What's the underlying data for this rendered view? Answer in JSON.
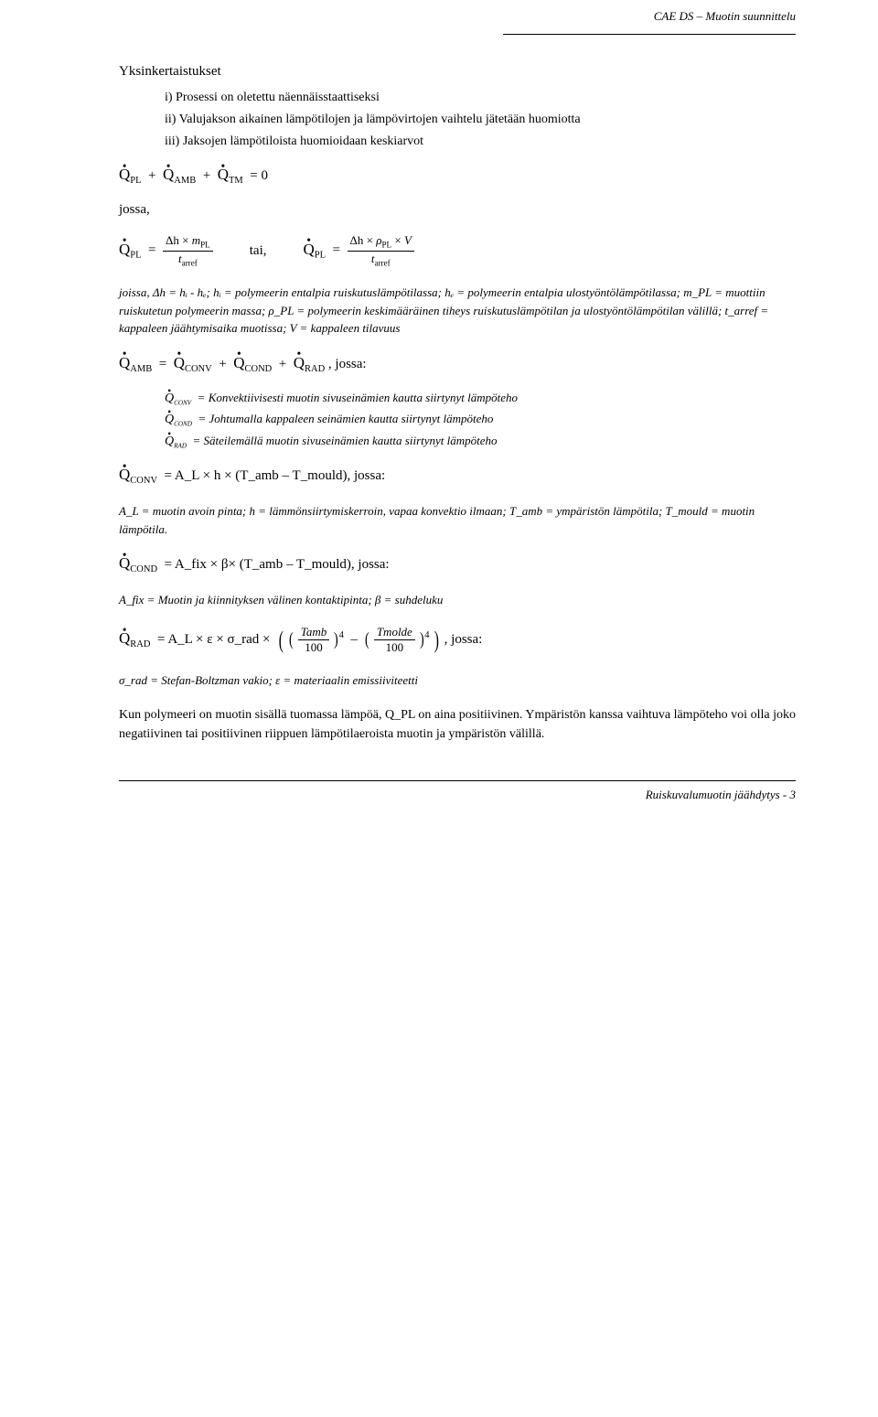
{
  "header": "CAE DS – Muotin suunnittelu",
  "footer": "Ruiskuvalumuotin jäähdytys - 3",
  "section_title": "Yksinkertaistukset",
  "assumptions": {
    "i": "i) Prosessi on oletettu näennäisstaattiseksi",
    "ii": "ii) Valujakson aikainen lämpötilojen ja lämpövirtojen vaihtelu jätetään huomiotta",
    "iii": "iii) Jaksojen lämpötiloista huomioidaan keskiarvot"
  },
  "eq1_text": "= 0",
  "jossa": "jossa,",
  "tai": "tai,",
  "jossa_colon": ", jossa:",
  "desc1": "joissa, Δh = hᵢ - hₑ; hᵢ = polymeerin entalpia ruiskutuslämpötilassa; hₑ = polymeerin entalpia ulostyöntölämpötilassa; m_PL = muottiin ruiskutetun polymeerin massa; ρ_PL = polymeerin keskimääräinen tiheys ruiskutuslämpötilan ja ulostyöntölämpötilan välillä; t_arref = kappaleen jäähtymisaika muotissa; V = kappaleen tilavuus",
  "q_conv_desc": "= Konvektiivisesti muotin sivuseinämien kautta siirtynyt lämpöteho",
  "q_cond_desc": "= Johtumalla kappaleen seinämien kautta siirtynyt lämpöteho",
  "q_rad_desc": "= Säteilemällä muotin sivuseinämien kautta siirtynyt lämpöteho",
  "conv_eq": "= A_L × h × (T_amb – T_mould), jossa:",
  "conv_desc": "A_L = muotin avoin pinta; h = lämmönsiirtymiskerroin, vapaa konvektio ilmaan; T_amb = ympäristön lämpötila; T_mould = muotin lämpötila.",
  "cond_eq": "= A_fix × β× (T_amb – T_mould), jossa:",
  "cond_desc": "A_fix = Muotin ja kiinnityksen välinen kontaktipinta; β = suhdeluku",
  "rad_prefix": "= A_L × ε × σ_rad ×",
  "rad_desc": "σ_rad = Stefan-Boltzman vakio; ε = materiaalin emissiiviteetti",
  "final_para": "Kun polymeeri on muotin sisällä tuomassa lämpöä, Q_PL on aina positiivinen. Ympäristön kanssa vaihtuva lämpöteho voi olla joko negatiivinen tai positiivinen riippuen lämpötilaeroista muotin ja ympäristön välillä.",
  "symbols": {
    "Q": "Q",
    "PL": "PL",
    "AMB": "AMB",
    "TM": "TM",
    "CONV": "CONV",
    "COND": "COND",
    "RAD": "RAD",
    "dh": "Δh",
    "m": "m",
    "rho": "ρ",
    "V": "V",
    "t_arref": "t",
    "arref": "arref",
    "Tamb": "Tamb",
    "Tmolde": "Tmolde",
    "hundred": "100",
    "four": "4",
    "x": "×"
  }
}
